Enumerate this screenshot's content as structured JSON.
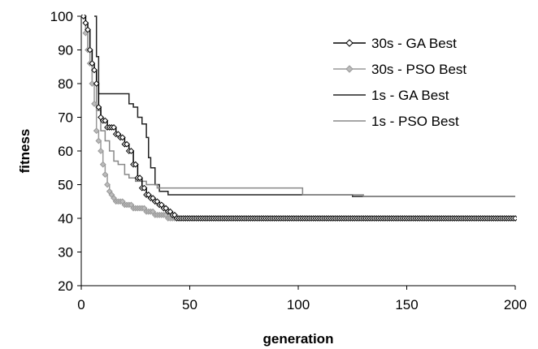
{
  "chart_data": {
    "type": "line",
    "xlabel": "generation",
    "ylabel": "fitness",
    "xlim": [
      0,
      200
    ],
    "ylim": [
      20,
      100
    ],
    "x_ticks": [
      "0",
      "50",
      "100",
      "150",
      "200"
    ],
    "y_ticks": [
      "20",
      "30",
      "40",
      "50",
      "60",
      "70",
      "80",
      "90",
      "100"
    ],
    "grid": false,
    "legend_position": "top-right",
    "series": [
      {
        "name": "30s - GA Best",
        "color": "#000000",
        "marker": "diamond",
        "points": [
          [
            1,
            100
          ],
          [
            2,
            98
          ],
          [
            3,
            96
          ],
          [
            4,
            90
          ],
          [
            5,
            86
          ],
          [
            6,
            84
          ],
          [
            7,
            80
          ],
          [
            8,
            73
          ],
          [
            9,
            70
          ],
          [
            10,
            69
          ],
          [
            12,
            67
          ],
          [
            14,
            67
          ],
          [
            16,
            65
          ],
          [
            18,
            64
          ],
          [
            20,
            62
          ],
          [
            22,
            60
          ],
          [
            24,
            56
          ],
          [
            26,
            52
          ],
          [
            28,
            49
          ],
          [
            30,
            47
          ],
          [
            32,
            46
          ],
          [
            34,
            45
          ],
          [
            36,
            44
          ],
          [
            38,
            43
          ],
          [
            40,
            42
          ],
          [
            42,
            41
          ],
          [
            44,
            40
          ],
          [
            45,
            40
          ],
          [
            200,
            40
          ]
        ]
      },
      {
        "name": "30s - PSO Best",
        "color": "#999999",
        "marker": "diamond",
        "points": [
          [
            1,
            100
          ],
          [
            2,
            95
          ],
          [
            3,
            90
          ],
          [
            4,
            86
          ],
          [
            5,
            80
          ],
          [
            6,
            74
          ],
          [
            7,
            66
          ],
          [
            8,
            63
          ],
          [
            9,
            60
          ],
          [
            10,
            56
          ],
          [
            11,
            53
          ],
          [
            12,
            50
          ],
          [
            13,
            48
          ],
          [
            14,
            47
          ],
          [
            15,
            46
          ],
          [
            16,
            45
          ],
          [
            18,
            45
          ],
          [
            20,
            44
          ],
          [
            22,
            44
          ],
          [
            24,
            43
          ],
          [
            26,
            43
          ],
          [
            28,
            43
          ],
          [
            30,
            42
          ],
          [
            32,
            42
          ],
          [
            34,
            41
          ],
          [
            36,
            41
          ],
          [
            38,
            41
          ],
          [
            40,
            40
          ],
          [
            42,
            40
          ],
          [
            45,
            40
          ],
          [
            200,
            40
          ]
        ]
      },
      {
        "name": "1s - GA Best",
        "color": "#222222",
        "marker": "none",
        "points": [
          [
            6,
            100
          ],
          [
            7,
            88
          ],
          [
            8,
            77
          ],
          [
            20,
            77
          ],
          [
            22,
            74
          ],
          [
            24,
            73
          ],
          [
            26,
            70
          ],
          [
            28,
            68
          ],
          [
            30,
            64
          ],
          [
            31,
            58
          ],
          [
            32,
            55
          ],
          [
            34,
            50
          ],
          [
            36,
            48
          ],
          [
            40,
            47
          ],
          [
            45,
            47
          ],
          [
            100,
            47
          ],
          [
            120,
            47
          ],
          [
            125,
            46.5
          ],
          [
            200,
            46.5
          ]
        ]
      },
      {
        "name": "1s - PSO Best",
        "color": "#888888",
        "marker": "none",
        "points": [
          [
            1,
            100
          ],
          [
            2,
            96
          ],
          [
            3,
            90
          ],
          [
            5,
            80
          ],
          [
            7,
            72
          ],
          [
            9,
            66
          ],
          [
            11,
            63
          ],
          [
            13,
            60
          ],
          [
            15,
            57
          ],
          [
            17,
            56
          ],
          [
            20,
            53
          ],
          [
            22,
            52
          ],
          [
            25,
            51
          ],
          [
            30,
            50
          ],
          [
            35,
            49
          ],
          [
            40,
            49
          ],
          [
            48,
            49
          ],
          [
            100,
            49
          ],
          [
            102,
            47
          ],
          [
            125,
            47
          ],
          [
            130,
            46.5
          ],
          [
            200,
            46.5
          ]
        ]
      }
    ]
  }
}
